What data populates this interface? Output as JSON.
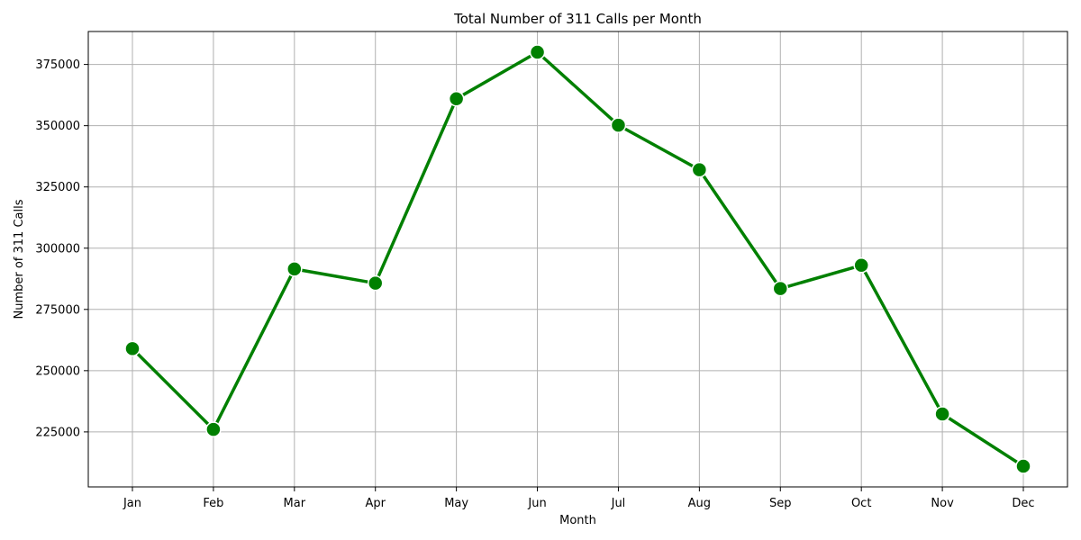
{
  "chart_data": {
    "type": "line",
    "title": "Total Number of 311 Calls per Month",
    "xlabel": "Month",
    "ylabel": "Number of 311 Calls",
    "categories": [
      "Jan",
      "Feb",
      "Mar",
      "Apr",
      "May",
      "Jun",
      "Jul",
      "Aug",
      "Sep",
      "Oct",
      "Nov",
      "Dec"
    ],
    "series": [
      {
        "values": [
          259000,
          226000,
          291500,
          285700,
          361000,
          380000,
          350200,
          332000,
          283500,
          293000,
          232300,
          211000
        ],
        "color": "#008000"
      }
    ],
    "yticks": [
      225000,
      250000,
      275000,
      300000,
      325000,
      350000,
      375000
    ],
    "ytick_labels": [
      "225000",
      "250000",
      "275000",
      "300000",
      "325000",
      "350000",
      "375000"
    ],
    "ylim": [
      202550,
      388450
    ],
    "grid": true,
    "legend": "none",
    "marker": "circle"
  }
}
